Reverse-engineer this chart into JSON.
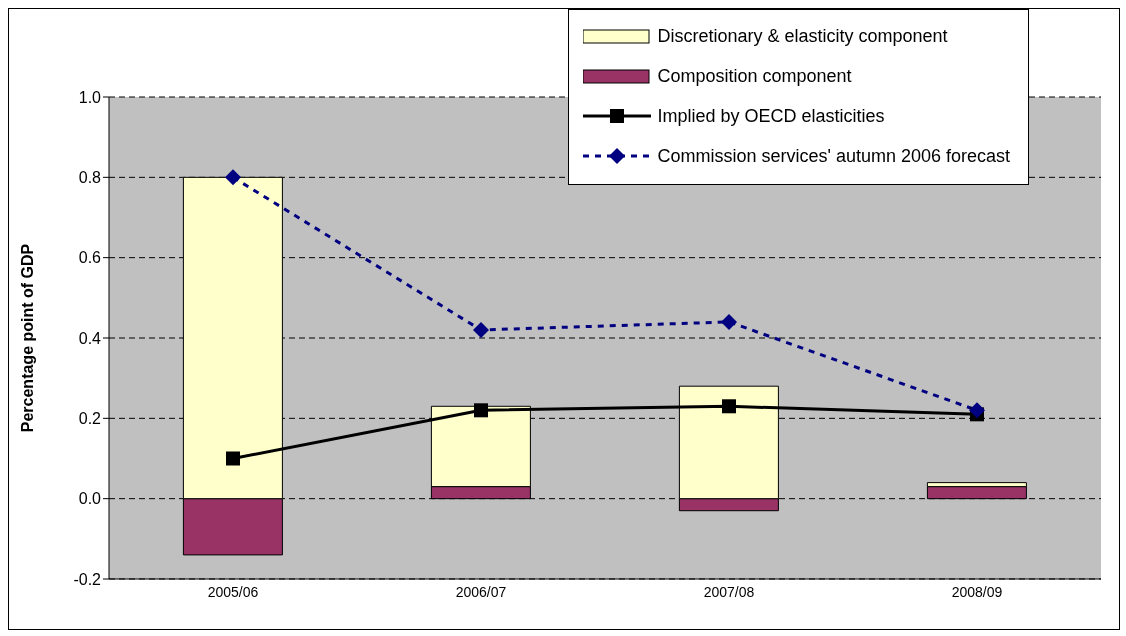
{
  "chart_data": {
    "type": "bar",
    "stacked": true,
    "ylabel": "Percentage point of GDP",
    "categories": [
      "2005/06",
      "2006/07",
      "2007/08",
      "2008/09"
    ],
    "series": [
      {
        "name": "Composition component",
        "color": "#993366",
        "values": [
          -0.14,
          0.03,
          -0.03,
          0.03
        ]
      },
      {
        "name": "Discretionary & elasticity component",
        "color": "#ffffcc",
        "values": [
          0.8,
          0.2,
          0.28,
          0.01
        ]
      },
      {
        "name": "Implied by OECD elasticities",
        "type": "line",
        "color": "#000000",
        "marker": "square",
        "line_style": "solid",
        "values": [
          0.1,
          0.22,
          0.23,
          0.21
        ]
      },
      {
        "name": "Commission services' autumn 2006 forecast",
        "type": "line",
        "color": "#000080",
        "marker": "diamond",
        "line_style": "dashed",
        "values": [
          0.8,
          0.42,
          0.44,
          0.22
        ]
      }
    ],
    "ylim": [
      -0.2,
      1.0
    ],
    "yticks": [
      {
        "value": -0.2,
        "label": "-0.2"
      },
      {
        "value": 0,
        "label": "0.0"
      },
      {
        "value": 0.2,
        "label": "0.2"
      },
      {
        "value": 0.4,
        "label": "0.4"
      },
      {
        "value": 0.6,
        "label": "0.6"
      },
      {
        "value": 0.8,
        "label": "0.8"
      },
      {
        "value": 1,
        "label": "1.0"
      }
    ],
    "grid": "y",
    "legend": "top right"
  }
}
